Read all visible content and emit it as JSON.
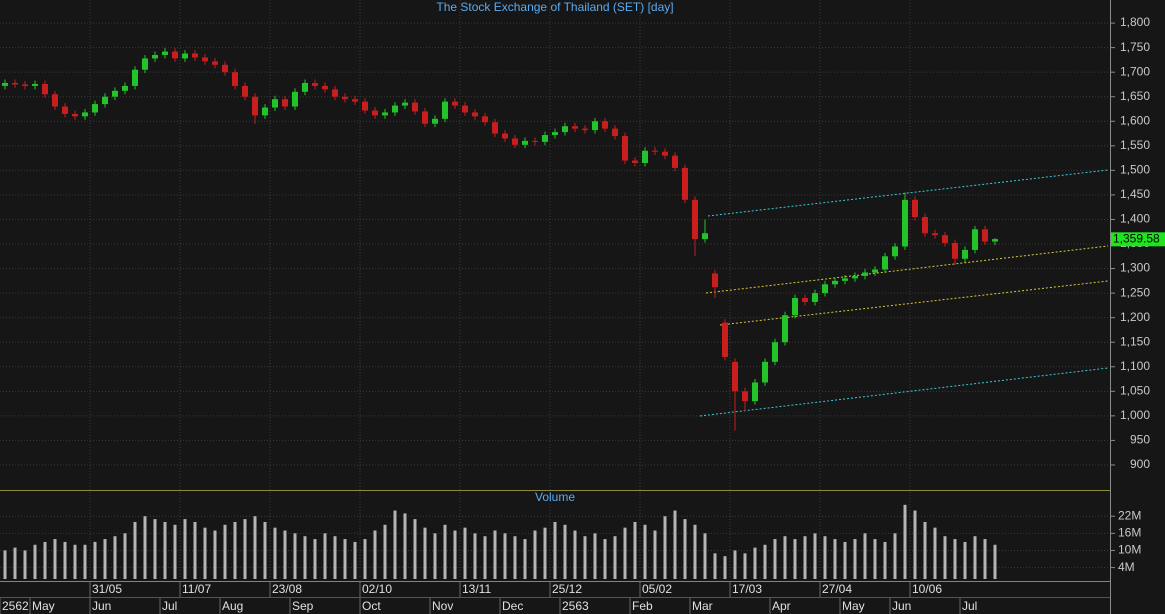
{
  "chart_data": {
    "type": "candlestick",
    "title": "The Stock Exchange of Thailand (SET) [day]",
    "volume_title": "Volume",
    "up_color": "#22c42a",
    "down_color": "#c81e1e",
    "volume_color": "#b4b4b4",
    "grid": true,
    "open": [
      1672,
      1678,
      1675,
      1672,
      1676,
      1655,
      1630,
      1615,
      1610,
      1618,
      1635,
      1650,
      1662,
      1672,
      1705,
      1728,
      1735,
      1742,
      1728,
      1738,
      1730,
      1722,
      1715,
      1700,
      1672,
      1650,
      1612,
      1628,
      1645,
      1630,
      1660,
      1678,
      1672,
      1665,
      1650,
      1645,
      1640,
      1622,
      1612,
      1618,
      1632,
      1638,
      1620,
      1595,
      1605,
      1640,
      1632,
      1618,
      1610,
      1598,
      1575,
      1565,
      1552,
      1560,
      1558,
      1572,
      1578,
      1590,
      1585,
      1582,
      1600,
      1585,
      1570,
      1520,
      1515,
      1540,
      1538,
      1530,
      1505,
      1440,
      1360,
      1290,
      1190,
      1110,
      1050,
      1030,
      1068,
      1110,
      1150,
      1205,
      1240,
      1232,
      1250,
      1268,
      1275,
      1280,
      1285,
      1292,
      1298,
      1325,
      1345,
      1440,
      1405,
      1372,
      1368,
      1352,
      1320,
      1338,
      1380,
      1355
    ],
    "high": [
      1685,
      1685,
      1682,
      1683,
      1683,
      1662,
      1637,
      1622,
      1625,
      1642,
      1657,
      1669,
      1679,
      1712,
      1735,
      1742,
      1749,
      1749,
      1745,
      1745,
      1737,
      1729,
      1722,
      1707,
      1679,
      1657,
      1635,
      1652,
      1652,
      1667,
      1685,
      1685,
      1679,
      1672,
      1657,
      1652,
      1647,
      1629,
      1625,
      1639,
      1645,
      1645,
      1627,
      1612,
      1647,
      1647,
      1639,
      1625,
      1617,
      1605,
      1582,
      1572,
      1567,
      1567,
      1579,
      1585,
      1597,
      1597,
      1592,
      1607,
      1607,
      1592,
      1577,
      1527,
      1547,
      1547,
      1545,
      1537,
      1512,
      1447,
      1400,
      1297,
      1197,
      1117,
      1057,
      1075,
      1117,
      1157,
      1212,
      1247,
      1247,
      1257,
      1275,
      1282,
      1287,
      1292,
      1299,
      1305,
      1332,
      1352,
      1455,
      1447,
      1412,
      1379,
      1375,
      1359,
      1345,
      1387,
      1387,
      1362
    ],
    "low": [
      1665,
      1668,
      1665,
      1665,
      1648,
      1623,
      1608,
      1603,
      1603,
      1611,
      1628,
      1643,
      1655,
      1665,
      1698,
      1721,
      1728,
      1721,
      1721,
      1723,
      1715,
      1708,
      1693,
      1665,
      1643,
      1595,
      1605,
      1621,
      1623,
      1623,
      1653,
      1665,
      1658,
      1643,
      1638,
      1633,
      1615,
      1605,
      1605,
      1611,
      1625,
      1613,
      1588,
      1588,
      1598,
      1625,
      1611,
      1603,
      1591,
      1568,
      1558,
      1545,
      1545,
      1551,
      1551,
      1565,
      1571,
      1578,
      1575,
      1575,
      1578,
      1563,
      1513,
      1508,
      1508,
      1531,
      1523,
      1498,
      1433,
      1325,
      1353,
      1240,
      1113,
      970,
      1010,
      1023,
      1061,
      1103,
      1143,
      1198,
      1225,
      1225,
      1243,
      1261,
      1268,
      1273,
      1278,
      1285,
      1291,
      1318,
      1338,
      1398,
      1365,
      1361,
      1345,
      1308,
      1313,
      1331,
      1348,
      1348
    ],
    "close": [
      1678,
      1675,
      1672,
      1676,
      1655,
      1630,
      1615,
      1610,
      1618,
      1635,
      1650,
      1662,
      1672,
      1705,
      1728,
      1735,
      1742,
      1728,
      1738,
      1730,
      1722,
      1715,
      1700,
      1672,
      1650,
      1612,
      1628,
      1645,
      1630,
      1660,
      1678,
      1672,
      1665,
      1650,
      1645,
      1640,
      1622,
      1612,
      1618,
      1632,
      1638,
      1620,
      1595,
      1605,
      1640,
      1632,
      1618,
      1610,
      1598,
      1575,
      1565,
      1552,
      1560,
      1558,
      1572,
      1578,
      1590,
      1585,
      1582,
      1600,
      1585,
      1570,
      1520,
      1515,
      1540,
      1538,
      1530,
      1505,
      1440,
      1360,
      1372,
      1262,
      1120,
      1050,
      1030,
      1068,
      1110,
      1150,
      1205,
      1240,
      1232,
      1250,
      1268,
      1275,
      1280,
      1285,
      1292,
      1298,
      1325,
      1345,
      1440,
      1405,
      1372,
      1368,
      1352,
      1320,
      1338,
      1380,
      1355,
      1360
    ],
    "volume": [
      10000000,
      11000000,
      10000000,
      12000000,
      13000000,
      14000000,
      13000000,
      12000000,
      12000000,
      13000000,
      14000000,
      15000000,
      16000000,
      20000000,
      22000000,
      21000000,
      20000000,
      19000000,
      21000000,
      20000000,
      18000000,
      17000000,
      19000000,
      20000000,
      21000000,
      22000000,
      20000000,
      18000000,
      17000000,
      16000000,
      15000000,
      14000000,
      16000000,
      15000000,
      14000000,
      13000000,
      14000000,
      17000000,
      19000000,
      24000000,
      23000000,
      21000000,
      18000000,
      16000000,
      19000000,
      17000000,
      18000000,
      16000000,
      15000000,
      17000000,
      16000000,
      15000000,
      14000000,
      17000000,
      18000000,
      20000000,
      19000000,
      17000000,
      15000000,
      16000000,
      14000000,
      15000000,
      18000000,
      20000000,
      19000000,
      17000000,
      22000000,
      24000000,
      21000000,
      19000000,
      16000000,
      9000000,
      8000000,
      10000000,
      9000000,
      11000000,
      12000000,
      14000000,
      15000000,
      14000000,
      15000000,
      16000000,
      15000000,
      14000000,
      13000000,
      14000000,
      16000000,
      14000000,
      13000000,
      16000000,
      26000000,
      24000000,
      20000000,
      18000000,
      15000000,
      14000000,
      13000000,
      15000000,
      14000000,
      12000000
    ],
    "date_labels": [
      null,
      null,
      null,
      null,
      null,
      null,
      null,
      null,
      null,
      "31/05",
      null,
      null,
      null,
      null,
      null,
      null,
      null,
      null,
      "11/07",
      null,
      null,
      null,
      null,
      null,
      null,
      null,
      null,
      "23/08",
      null,
      null,
      null,
      null,
      null,
      null,
      null,
      null,
      "02/10",
      null,
      null,
      null,
      null,
      null,
      null,
      null,
      null,
      null,
      "13/11",
      null,
      null,
      null,
      null,
      null,
      null,
      null,
      null,
      "25/12",
      null,
      null,
      null,
      null,
      null,
      null,
      null,
      null,
      "05/02",
      null,
      null,
      null,
      null,
      null,
      null,
      null,
      null,
      "17/03",
      null,
      null,
      null,
      null,
      null,
      null,
      null,
      null,
      "27/04",
      null,
      null,
      null,
      null,
      null,
      null,
      null,
      null,
      "10/06",
      null,
      null,
      null,
      null,
      null,
      null,
      null,
      null
    ],
    "month_labels": [
      "2562",
      null,
      null,
      "May",
      null,
      null,
      null,
      null,
      null,
      "Jun",
      null,
      null,
      null,
      null,
      null,
      null,
      "Jul",
      null,
      null,
      null,
      null,
      null,
      "Aug",
      null,
      null,
      null,
      null,
      null,
      null,
      "Sep",
      null,
      null,
      null,
      null,
      null,
      null,
      "Oct",
      null,
      null,
      null,
      null,
      null,
      null,
      "Nov",
      null,
      null,
      null,
      null,
      null,
      null,
      "Dec",
      null,
      null,
      null,
      null,
      null,
      "2563",
      null,
      null,
      null,
      null,
      null,
      null,
      "Feb",
      null,
      null,
      null,
      null,
      null,
      "Mar",
      null,
      null,
      null,
      null,
      null,
      null,
      null,
      "Apr",
      null,
      null,
      null,
      null,
      null,
      null,
      "May",
      null,
      null,
      null,
      null,
      "Jun",
      null,
      null,
      null,
      null,
      null,
      null,
      "Jul",
      null,
      null,
      null
    ],
    "ylim": [
      849,
      1847
    ],
    "yticks": [
      900,
      950,
      {
        "value": 1000,
        "label": "1,000"
      },
      {
        "value": 1050,
        "label": "1,050"
      },
      {
        "value": 1100,
        "label": "1,100"
      },
      {
        "value": 1150,
        "label": "1,150"
      },
      {
        "value": 1200,
        "label": "1,200"
      },
      {
        "value": 1250,
        "label": "1,250"
      },
      {
        "value": 1300,
        "label": "1,300"
      },
      {
        "value": 1350,
        "label": "1,350"
      },
      {
        "value": 1400,
        "label": "1,400"
      },
      {
        "value": 1450,
        "label": "1,450"
      },
      {
        "value": 1500,
        "label": "1,500"
      },
      {
        "value": 1550,
        "label": "1,550"
      },
      {
        "value": 1600,
        "label": "1,600"
      },
      {
        "value": 1650,
        "label": "1,650"
      },
      {
        "value": 1700,
        "label": "1,700"
      },
      {
        "value": 1750,
        "label": "1,750"
      },
      {
        "value": 1800,
        "label": "1,800"
      }
    ],
    "volume_ylim": [
      0,
      30500000
    ],
    "volume_yticks": [
      {
        "value": 4000000,
        "label": "4M"
      },
      {
        "value": 10000000,
        "label": "10M"
      },
      {
        "value": 16000000,
        "label": "16M"
      },
      {
        "value": 22000000,
        "label": "22M"
      }
    ],
    "last_price": {
      "value": 1359.58,
      "label": "1,359.58"
    }
  }
}
